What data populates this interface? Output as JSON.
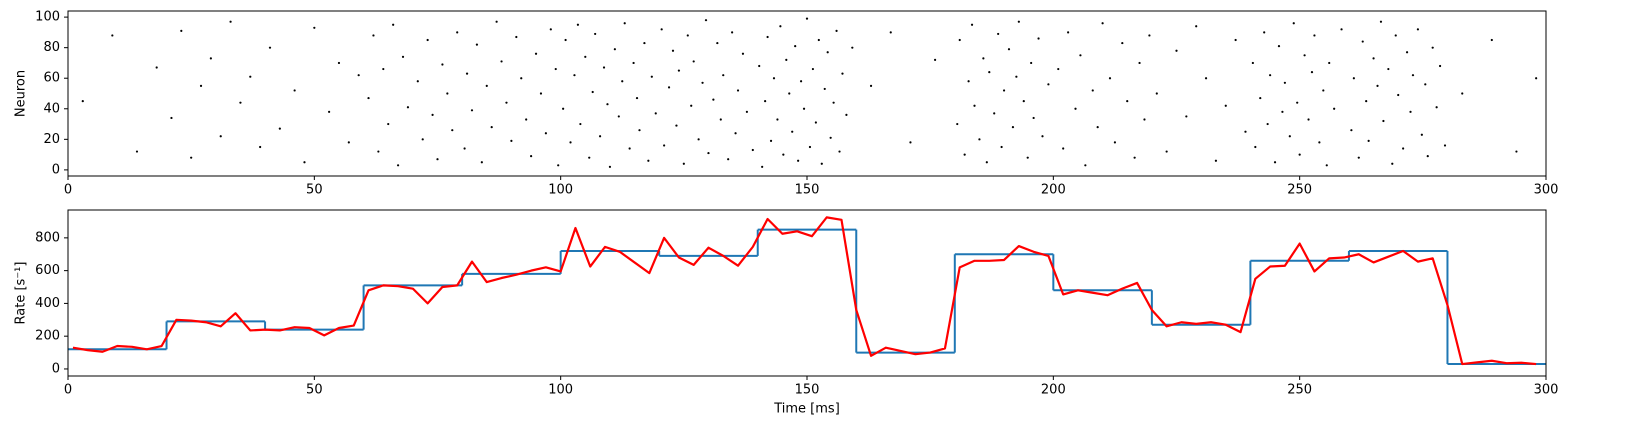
{
  "chart_data": [
    {
      "type": "scatter",
      "ylabel": "Neuron",
      "color": "#000000",
      "xlim": [
        0,
        300
      ],
      "xticks": [
        0,
        50,
        100,
        150,
        200,
        250,
        300
      ],
      "ylim": [
        -4,
        104
      ],
      "yticks": [
        0,
        20,
        40,
        60,
        80,
        100
      ],
      "points": [
        [
          3,
          45
        ],
        [
          9,
          88
        ],
        [
          14,
          12
        ],
        [
          18,
          67
        ],
        [
          21,
          34
        ],
        [
          23,
          91
        ],
        [
          25,
          8
        ],
        [
          27,
          55
        ],
        [
          29,
          73
        ],
        [
          31,
          22
        ],
        [
          33,
          97
        ],
        [
          35,
          44
        ],
        [
          37,
          61
        ],
        [
          39,
          15
        ],
        [
          41,
          80
        ],
        [
          43,
          27
        ],
        [
          46,
          52
        ],
        [
          48,
          5
        ],
        [
          50,
          93
        ],
        [
          53,
          38
        ],
        [
          55,
          70
        ],
        [
          57,
          18
        ],
        [
          59,
          62
        ],
        [
          61,
          47
        ],
        [
          62,
          88
        ],
        [
          63,
          12
        ],
        [
          64,
          66
        ],
        [
          65,
          30
        ],
        [
          66,
          95
        ],
        [
          67,
          3
        ],
        [
          68,
          74
        ],
        [
          69,
          41
        ],
        [
          71,
          58
        ],
        [
          72,
          20
        ],
        [
          73,
          85
        ],
        [
          74,
          36
        ],
        [
          75,
          7
        ],
        [
          76,
          69
        ],
        [
          77,
          50
        ],
        [
          78,
          26
        ],
        [
          79,
          90
        ],
        [
          80.5,
          14
        ],
        [
          81,
          63
        ],
        [
          82,
          39
        ],
        [
          83,
          82
        ],
        [
          84,
          5
        ],
        [
          85,
          55
        ],
        [
          86,
          28
        ],
        [
          87,
          97
        ],
        [
          88,
          71
        ],
        [
          89,
          44
        ],
        [
          90,
          19
        ],
        [
          91,
          87
        ],
        [
          92,
          60
        ],
        [
          93,
          33
        ],
        [
          94,
          9
        ],
        [
          95,
          76
        ],
        [
          96,
          50
        ],
        [
          97,
          24
        ],
        [
          98,
          92
        ],
        [
          99,
          66
        ],
        [
          99.5,
          3
        ],
        [
          100.5,
          40
        ],
        [
          101,
          85
        ],
        [
          102,
          18
        ],
        [
          102.8,
          62
        ],
        [
          103.5,
          95
        ],
        [
          104,
          30
        ],
        [
          105,
          74
        ],
        [
          105.8,
          8
        ],
        [
          106.5,
          51
        ],
        [
          107,
          89
        ],
        [
          108,
          22
        ],
        [
          108.8,
          67
        ],
        [
          109.5,
          43
        ],
        [
          110,
          2
        ],
        [
          111,
          79
        ],
        [
          111.8,
          35
        ],
        [
          112.5,
          58
        ],
        [
          113,
          96
        ],
        [
          114,
          14
        ],
        [
          114.8,
          70
        ],
        [
          115.5,
          47
        ],
        [
          116,
          26
        ],
        [
          117,
          83
        ],
        [
          117.8,
          6
        ],
        [
          118.5,
          61
        ],
        [
          119.3,
          37
        ],
        [
          120.5,
          92
        ],
        [
          121,
          16
        ],
        [
          122,
          54
        ],
        [
          122.8,
          78
        ],
        [
          123.5,
          29
        ],
        [
          124,
          65
        ],
        [
          125,
          4
        ],
        [
          125.8,
          88
        ],
        [
          126.5,
          42
        ],
        [
          127,
          71
        ],
        [
          128,
          20
        ],
        [
          128.8,
          57
        ],
        [
          129.5,
          98
        ],
        [
          130,
          11
        ],
        [
          131,
          46
        ],
        [
          131.8,
          83
        ],
        [
          132.5,
          33
        ],
        [
          133,
          62
        ],
        [
          134,
          7
        ],
        [
          134.8,
          90
        ],
        [
          135.5,
          24
        ],
        [
          136,
          52
        ],
        [
          137,
          76
        ],
        [
          137.8,
          38
        ],
        [
          139,
          13
        ],
        [
          140.3,
          68
        ],
        [
          140.9,
          2
        ],
        [
          141.5,
          45
        ],
        [
          142,
          87
        ],
        [
          142.7,
          19
        ],
        [
          143.3,
          60
        ],
        [
          144,
          33
        ],
        [
          144.6,
          94
        ],
        [
          145.2,
          10
        ],
        [
          145.8,
          72
        ],
        [
          146.4,
          50
        ],
        [
          147,
          25
        ],
        [
          147.6,
          81
        ],
        [
          148.2,
          6
        ],
        [
          148.8,
          58
        ],
        [
          149.4,
          40
        ],
        [
          150,
          99
        ],
        [
          150.6,
          15
        ],
        [
          151.2,
          66
        ],
        [
          151.8,
          31
        ],
        [
          152.4,
          85
        ],
        [
          153,
          4
        ],
        [
          153.6,
          53
        ],
        [
          154.2,
          77
        ],
        [
          154.8,
          21
        ],
        [
          155.4,
          44
        ],
        [
          156,
          91
        ],
        [
          156.6,
          12
        ],
        [
          157.2,
          63
        ],
        [
          158,
          36
        ],
        [
          159.2,
          80
        ],
        [
          163,
          55
        ],
        [
          167,
          90
        ],
        [
          171,
          18
        ],
        [
          176,
          72
        ],
        [
          180.5,
          30
        ],
        [
          181,
          85
        ],
        [
          182,
          10
        ],
        [
          182.8,
          58
        ],
        [
          183.5,
          95
        ],
        [
          184,
          42
        ],
        [
          185,
          20
        ],
        [
          185.8,
          73
        ],
        [
          186.5,
          5
        ],
        [
          187,
          64
        ],
        [
          188,
          37
        ],
        [
          188.8,
          89
        ],
        [
          189.5,
          15
        ],
        [
          190,
          52
        ],
        [
          191,
          79
        ],
        [
          191.8,
          28
        ],
        [
          192.5,
          61
        ],
        [
          193,
          97
        ],
        [
          194,
          45
        ],
        [
          194.8,
          8
        ],
        [
          195.5,
          70
        ],
        [
          196,
          34
        ],
        [
          197,
          86
        ],
        [
          197.8,
          22
        ],
        [
          199,
          56
        ],
        [
          201,
          66
        ],
        [
          202,
          14
        ],
        [
          203,
          90
        ],
        [
          204.5,
          40
        ],
        [
          205.5,
          75
        ],
        [
          206.5,
          3
        ],
        [
          208,
          52
        ],
        [
          209,
          28
        ],
        [
          210,
          96
        ],
        [
          211.5,
          60
        ],
        [
          212.5,
          18
        ],
        [
          214,
          83
        ],
        [
          215,
          45
        ],
        [
          216.5,
          8
        ],
        [
          217.5,
          70
        ],
        [
          218.5,
          33
        ],
        [
          219.5,
          88
        ],
        [
          221,
          50
        ],
        [
          223,
          12
        ],
        [
          225,
          78
        ],
        [
          227,
          35
        ],
        [
          229,
          94
        ],
        [
          231,
          60
        ],
        [
          233,
          6
        ],
        [
          235,
          42
        ],
        [
          237,
          85
        ],
        [
          239,
          25
        ],
        [
          240.5,
          70
        ],
        [
          241,
          15
        ],
        [
          242,
          47
        ],
        [
          242.8,
          90
        ],
        [
          243.5,
          30
        ],
        [
          244,
          62
        ],
        [
          245,
          5
        ],
        [
          245.8,
          81
        ],
        [
          246.5,
          38
        ],
        [
          247,
          57
        ],
        [
          248,
          22
        ],
        [
          248.8,
          96
        ],
        [
          249.5,
          44
        ],
        [
          250,
          10
        ],
        [
          251,
          75
        ],
        [
          251.8,
          33
        ],
        [
          252.5,
          64
        ],
        [
          253,
          88
        ],
        [
          254,
          18
        ],
        [
          254.8,
          52
        ],
        [
          255.5,
          3
        ],
        [
          256,
          70
        ],
        [
          257,
          40
        ],
        [
          258.5,
          92
        ],
        [
          260.5,
          26
        ],
        [
          261,
          60
        ],
        [
          262,
          8
        ],
        [
          262.8,
          84
        ],
        [
          263.5,
          45
        ],
        [
          264,
          19
        ],
        [
          265,
          73
        ],
        [
          265.8,
          55
        ],
        [
          266.5,
          97
        ],
        [
          267,
          32
        ],
        [
          268,
          66
        ],
        [
          268.8,
          4
        ],
        [
          269.5,
          88
        ],
        [
          270,
          49
        ],
        [
          271,
          14
        ],
        [
          271.8,
          77
        ],
        [
          272.5,
          38
        ],
        [
          273,
          62
        ],
        [
          274,
          92
        ],
        [
          274.8,
          23
        ],
        [
          275.5,
          56
        ],
        [
          276,
          9
        ],
        [
          277,
          80
        ],
        [
          277.8,
          41
        ],
        [
          278.5,
          68
        ],
        [
          279.5,
          16
        ],
        [
          283,
          50
        ],
        [
          289,
          85
        ],
        [
          294,
          12
        ],
        [
          298,
          60
        ]
      ]
    },
    {
      "type": "rate",
      "ylabel": "Rate [s⁻¹]",
      "xlabel": "Time [ms]",
      "xlim": [
        0,
        300
      ],
      "xticks": [
        0,
        50,
        100,
        150,
        200,
        250,
        300
      ],
      "ylim": [
        -43,
        970
      ],
      "yticks": [
        0,
        200,
        400,
        600,
        800
      ],
      "step": {
        "color": "#1f77b4",
        "bins": [
          0,
          20,
          40,
          60,
          80,
          100,
          120,
          140,
          160,
          180,
          200,
          220,
          240,
          260,
          280,
          300
        ],
        "values": [
          120,
          290,
          240,
          510,
          580,
          720,
          690,
          850,
          100,
          700,
          480,
          270,
          660,
          720,
          30
        ]
      },
      "line": {
        "color": "#ff0000",
        "x": [
          1,
          4,
          7,
          10,
          13,
          16,
          19,
          22,
          25,
          28,
          31,
          34,
          37,
          40,
          43,
          46,
          49,
          52,
          55,
          58,
          61,
          64,
          67,
          70,
          73,
          76,
          79,
          82,
          85,
          88,
          91,
          94,
          97,
          100,
          103,
          106,
          109,
          112,
          118,
          121,
          124,
          127,
          130,
          133,
          136,
          139,
          142,
          145,
          148,
          151,
          154,
          157,
          160,
          163,
          166,
          169,
          172,
          175,
          178,
          181,
          184,
          187,
          190,
          193,
          196,
          199,
          202,
          205,
          208,
          211,
          214,
          217,
          220,
          223,
          226,
          229,
          232,
          235,
          238,
          241,
          244,
          247,
          250,
          253,
          256,
          259,
          262,
          265,
          268,
          271,
          274,
          277,
          280,
          283,
          286,
          289,
          292,
          295,
          298
        ],
        "values": [
          130,
          115,
          105,
          140,
          135,
          120,
          140,
          300,
          295,
          285,
          260,
          340,
          235,
          240,
          235,
          255,
          250,
          205,
          250,
          265,
          480,
          510,
          505,
          490,
          400,
          500,
          510,
          655,
          530,
          555,
          575,
          600,
          620,
          595,
          860,
          625,
          745,
          715,
          585,
          800,
          680,
          635,
          740,
          690,
          630,
          745,
          915,
          825,
          840,
          810,
          925,
          910,
          360,
          80,
          130,
          110,
          90,
          100,
          125,
          620,
          660,
          660,
          665,
          750,
          715,
          690,
          455,
          480,
          465,
          450,
          490,
          525,
          360,
          260,
          285,
          275,
          285,
          270,
          225,
          550,
          625,
          630,
          765,
          595,
          675,
          680,
          700,
          650,
          685,
          720,
          655,
          675,
          390,
          30,
          40,
          50,
          35,
          38,
          30
        ]
      }
    }
  ]
}
